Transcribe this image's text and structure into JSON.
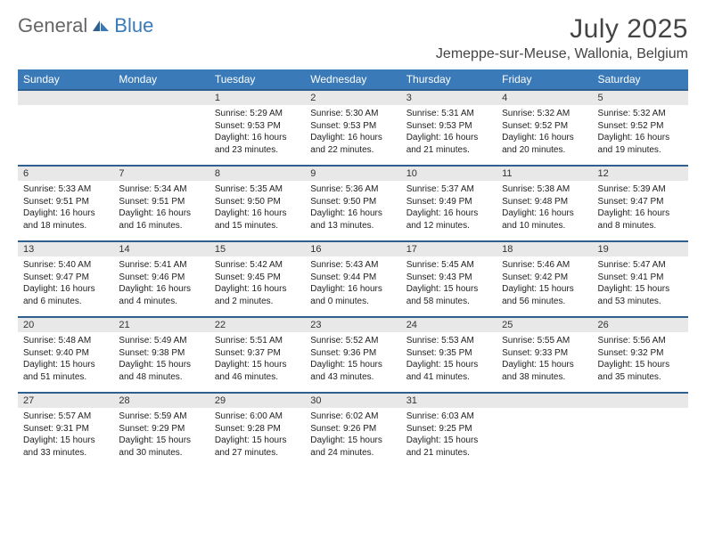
{
  "logo": {
    "text1": "General",
    "text2": "Blue"
  },
  "header": {
    "title": "July 2025",
    "location": "Jemeppe-sur-Meuse, Wallonia, Belgium"
  },
  "colors": {
    "header_bg": "#3a7ab8",
    "header_text": "#ffffff",
    "daynum_bg": "#e8e8e8",
    "border_top": "#2e5f8f",
    "body_text": "#222222"
  },
  "weekdays": [
    "Sunday",
    "Monday",
    "Tuesday",
    "Wednesday",
    "Thursday",
    "Friday",
    "Saturday"
  ],
  "weeks": [
    {
      "days": [
        null,
        null,
        {
          "n": "1",
          "sunrise": "5:29 AM",
          "sunset": "9:53 PM",
          "daylight": "16 hours and 23 minutes."
        },
        {
          "n": "2",
          "sunrise": "5:30 AM",
          "sunset": "9:53 PM",
          "daylight": "16 hours and 22 minutes."
        },
        {
          "n": "3",
          "sunrise": "5:31 AM",
          "sunset": "9:53 PM",
          "daylight": "16 hours and 21 minutes."
        },
        {
          "n": "4",
          "sunrise": "5:32 AM",
          "sunset": "9:52 PM",
          "daylight": "16 hours and 20 minutes."
        },
        {
          "n": "5",
          "sunrise": "5:32 AM",
          "sunset": "9:52 PM",
          "daylight": "16 hours and 19 minutes."
        }
      ]
    },
    {
      "days": [
        {
          "n": "6",
          "sunrise": "5:33 AM",
          "sunset": "9:51 PM",
          "daylight": "16 hours and 18 minutes."
        },
        {
          "n": "7",
          "sunrise": "5:34 AM",
          "sunset": "9:51 PM",
          "daylight": "16 hours and 16 minutes."
        },
        {
          "n": "8",
          "sunrise": "5:35 AM",
          "sunset": "9:50 PM",
          "daylight": "16 hours and 15 minutes."
        },
        {
          "n": "9",
          "sunrise": "5:36 AM",
          "sunset": "9:50 PM",
          "daylight": "16 hours and 13 minutes."
        },
        {
          "n": "10",
          "sunrise": "5:37 AM",
          "sunset": "9:49 PM",
          "daylight": "16 hours and 12 minutes."
        },
        {
          "n": "11",
          "sunrise": "5:38 AM",
          "sunset": "9:48 PM",
          "daylight": "16 hours and 10 minutes."
        },
        {
          "n": "12",
          "sunrise": "5:39 AM",
          "sunset": "9:47 PM",
          "daylight": "16 hours and 8 minutes."
        }
      ]
    },
    {
      "days": [
        {
          "n": "13",
          "sunrise": "5:40 AM",
          "sunset": "9:47 PM",
          "daylight": "16 hours and 6 minutes."
        },
        {
          "n": "14",
          "sunrise": "5:41 AM",
          "sunset": "9:46 PM",
          "daylight": "16 hours and 4 minutes."
        },
        {
          "n": "15",
          "sunrise": "5:42 AM",
          "sunset": "9:45 PM",
          "daylight": "16 hours and 2 minutes."
        },
        {
          "n": "16",
          "sunrise": "5:43 AM",
          "sunset": "9:44 PM",
          "daylight": "16 hours and 0 minutes."
        },
        {
          "n": "17",
          "sunrise": "5:45 AM",
          "sunset": "9:43 PM",
          "daylight": "15 hours and 58 minutes."
        },
        {
          "n": "18",
          "sunrise": "5:46 AM",
          "sunset": "9:42 PM",
          "daylight": "15 hours and 56 minutes."
        },
        {
          "n": "19",
          "sunrise": "5:47 AM",
          "sunset": "9:41 PM",
          "daylight": "15 hours and 53 minutes."
        }
      ]
    },
    {
      "days": [
        {
          "n": "20",
          "sunrise": "5:48 AM",
          "sunset": "9:40 PM",
          "daylight": "15 hours and 51 minutes."
        },
        {
          "n": "21",
          "sunrise": "5:49 AM",
          "sunset": "9:38 PM",
          "daylight": "15 hours and 48 minutes."
        },
        {
          "n": "22",
          "sunrise": "5:51 AM",
          "sunset": "9:37 PM",
          "daylight": "15 hours and 46 minutes."
        },
        {
          "n": "23",
          "sunrise": "5:52 AM",
          "sunset": "9:36 PM",
          "daylight": "15 hours and 43 minutes."
        },
        {
          "n": "24",
          "sunrise": "5:53 AM",
          "sunset": "9:35 PM",
          "daylight": "15 hours and 41 minutes."
        },
        {
          "n": "25",
          "sunrise": "5:55 AM",
          "sunset": "9:33 PM",
          "daylight": "15 hours and 38 minutes."
        },
        {
          "n": "26",
          "sunrise": "5:56 AM",
          "sunset": "9:32 PM",
          "daylight": "15 hours and 35 minutes."
        }
      ]
    },
    {
      "days": [
        {
          "n": "27",
          "sunrise": "5:57 AM",
          "sunset": "9:31 PM",
          "daylight": "15 hours and 33 minutes."
        },
        {
          "n": "28",
          "sunrise": "5:59 AM",
          "sunset": "9:29 PM",
          "daylight": "15 hours and 30 minutes."
        },
        {
          "n": "29",
          "sunrise": "6:00 AM",
          "sunset": "9:28 PM",
          "daylight": "15 hours and 27 minutes."
        },
        {
          "n": "30",
          "sunrise": "6:02 AM",
          "sunset": "9:26 PM",
          "daylight": "15 hours and 24 minutes."
        },
        {
          "n": "31",
          "sunrise": "6:03 AM",
          "sunset": "9:25 PM",
          "daylight": "15 hours and 21 minutes."
        },
        null,
        null
      ]
    }
  ]
}
